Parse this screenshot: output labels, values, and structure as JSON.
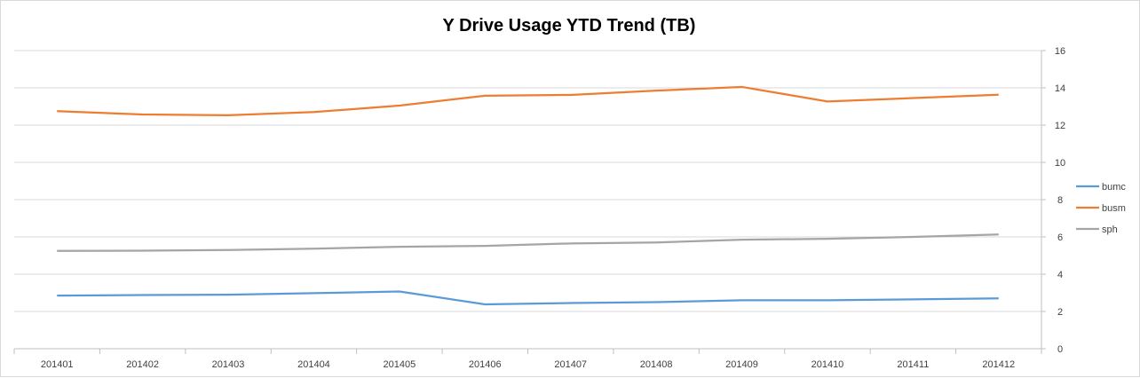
{
  "chart_data": {
    "type": "line",
    "title": "Y Drive Usage YTD Trend (TB)",
    "xlabel": "",
    "ylabel": "",
    "categories": [
      "201401",
      "201402",
      "201403",
      "201404",
      "201405",
      "201406",
      "201407",
      "201408",
      "201409",
      "201410",
      "201411",
      "201412"
    ],
    "ylim": [
      0,
      16
    ],
    "yticks": [
      0,
      2,
      4,
      6,
      8,
      10,
      12,
      14,
      16
    ],
    "y_axis_side": "right",
    "grid": true,
    "legend_position": "right",
    "series": [
      {
        "name": "bumc",
        "color": "#5b9bd5",
        "values": [
          2.85,
          2.88,
          2.9,
          2.98,
          3.07,
          2.38,
          2.45,
          2.5,
          2.6,
          2.6,
          2.65,
          2.7
        ]
      },
      {
        "name": "busm",
        "color": "#ed7d31",
        "values": [
          12.75,
          12.57,
          12.53,
          12.7,
          13.05,
          13.58,
          13.62,
          13.85,
          14.05,
          13.27,
          13.45,
          13.63
        ]
      },
      {
        "name": "sph",
        "color": "#a5a5a5",
        "values": [
          5.25,
          5.26,
          5.3,
          5.37,
          5.47,
          5.52,
          5.65,
          5.7,
          5.85,
          5.9,
          6.0,
          6.13
        ]
      }
    ]
  }
}
